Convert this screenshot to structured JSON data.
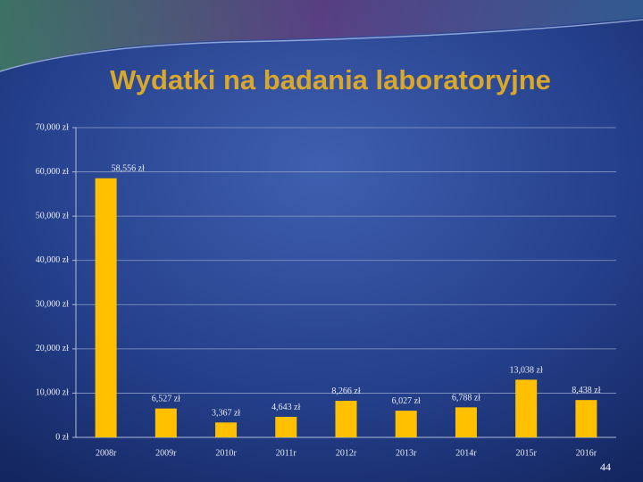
{
  "chart_data": {
    "type": "bar",
    "title": "Wydatki na badania laboratoryjne",
    "categories": [
      "2008r",
      "2009r",
      "2010r",
      "2011r",
      "2012r",
      "2013r",
      "2014r",
      "2015r",
      "2016r"
    ],
    "values": [
      58556,
      6527,
      3367,
      4643,
      8266,
      6027,
      6788,
      13038,
      8438
    ],
    "value_labels": [
      "58,556 zł",
      "6,527 zł",
      "3,367 zł",
      "4,643 zł",
      "8,266 zł",
      "6,027 zł",
      "6,788 zł",
      "13,038 zł",
      "8,438 zł"
    ],
    "color": "#ffc000",
    "ylim": [
      0,
      70000
    ],
    "yticks": [
      {
        "value": 0,
        "label": "0 zł"
      },
      {
        "value": 10000,
        "label": "10,000 zł"
      },
      {
        "value": 20000,
        "label": "20,000 zł"
      },
      {
        "value": 30000,
        "label": "30,000 zł"
      },
      {
        "value": 40000,
        "label": "40,000 zł"
      },
      {
        "value": 50000,
        "label": "50,000 zł"
      },
      {
        "value": 60000,
        "label": "60,000 zł"
      },
      {
        "value": 70000,
        "label": "70,000 zł"
      }
    ],
    "grid": true
  },
  "slide": {
    "page_number": "44"
  }
}
